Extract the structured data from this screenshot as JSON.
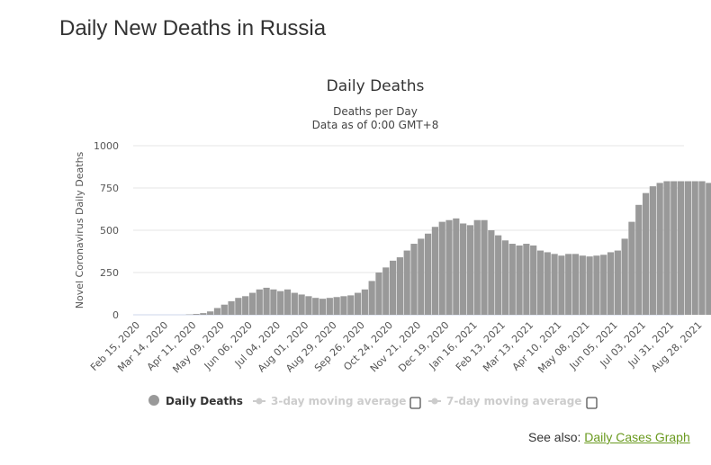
{
  "page_title": "Daily New Deaths in Russia",
  "see_also": {
    "label": "See also:",
    "link": "Daily Cases Graph"
  },
  "chart_data": {
    "type": "bar",
    "title": "Daily Deaths",
    "subtitle": [
      "Deaths per Day",
      "Data as of 0:00 GMT+8"
    ],
    "ylabel": "Novel Coronavirus Daily Deaths",
    "ylim": [
      0,
      1000
    ],
    "yticks": [
      0,
      250,
      500,
      750,
      1000
    ],
    "xtick_labels": [
      "Feb 15, 2020",
      "Mar 14, 2020",
      "Apr 11, 2020",
      "May 09, 2020",
      "Jun 06, 2020",
      "Jul 04, 2020",
      "Aug 01, 2020",
      "Aug 29, 2020",
      "Sep 26, 2020",
      "Oct 24, 2020",
      "Nov 21, 2020",
      "Dec 19, 2020",
      "Jan 16, 2021",
      "Feb 13, 2021",
      "Mar 13, 2021",
      "Apr 10, 2021",
      "May 08, 2021",
      "Jun 05, 2021",
      "Jul 03, 2021",
      "Jul 31, 2021",
      "Aug 28, 2021"
    ],
    "x_start": "Feb 15, 2020",
    "x_interval_days": 7,
    "values": [
      0,
      0,
      0,
      0,
      0,
      0,
      0,
      2,
      5,
      10,
      20,
      40,
      60,
      80,
      100,
      110,
      130,
      150,
      160,
      150,
      140,
      150,
      130,
      120,
      110,
      100,
      95,
      100,
      105,
      110,
      115,
      130,
      150,
      200,
      250,
      280,
      320,
      340,
      380,
      420,
      450,
      480,
      520,
      550,
      560,
      570,
      540,
      530,
      560,
      560,
      500,
      470,
      440,
      420,
      410,
      420,
      410,
      380,
      370,
      360,
      350,
      360,
      360,
      350,
      345,
      350,
      355,
      370,
      380,
      450,
      550,
      650,
      720,
      760,
      780,
      790,
      790,
      790,
      790,
      790,
      790,
      780
    ],
    "series_color": "#999999",
    "legend": [
      {
        "label": "Daily Deaths",
        "active": true
      },
      {
        "label": "3-day moving average",
        "active": false
      },
      {
        "label": "7-day moving average",
        "active": false
      }
    ],
    "legend_position": "bottom"
  }
}
